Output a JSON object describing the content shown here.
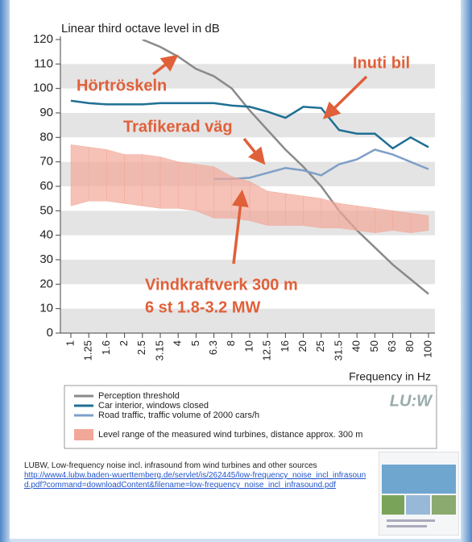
{
  "chart_data": {
    "type": "line",
    "title": "Linear third octave level in dB",
    "x_label": "Frequency in Hz",
    "categories": [
      "1",
      "1.25",
      "1.6",
      "2",
      "2.5",
      "3.15",
      "4",
      "5",
      "6.3",
      "8",
      "10",
      "12.5",
      "16",
      "20",
      "25",
      "31.5",
      "40",
      "50",
      "63",
      "80",
      "100"
    ],
    "ylim": [
      0,
      120
    ],
    "yticks": [
      0,
      10,
      20,
      30,
      40,
      50,
      60,
      70,
      80,
      90,
      100,
      110,
      120
    ],
    "grid": "bands",
    "series": [
      {
        "name": "Perception threshold",
        "color": "#8a8a8a",
        "values": [
          null,
          null,
          null,
          null,
          120,
          117,
          113,
          108,
          105,
          100,
          91,
          83,
          75,
          68,
          60,
          50,
          42,
          35,
          28,
          22,
          16
        ]
      },
      {
        "name": "Car interior, windows closed",
        "color": "#1f6f94",
        "values": [
          95,
          94,
          93.5,
          93.5,
          93.5,
          94,
          94,
          94,
          94,
          93,
          92.5,
          90.5,
          88,
          92.5,
          92,
          83,
          81.5,
          81.5,
          75.5,
          80,
          76
        ]
      },
      {
        "name": "Road traffic, traffic volume of 2000 cars/h",
        "color": "#7f9fc8",
        "values": [
          null,
          null,
          null,
          null,
          null,
          null,
          null,
          null,
          63,
          63,
          63.5,
          65.5,
          67.5,
          66.5,
          64.5,
          69,
          71,
          75,
          73,
          70,
          67
        ]
      },
      {
        "name": "Level range of the measured wind turbines, distance approx. 300 m",
        "color": "#f2a898",
        "type": "range",
        "values": [
          77,
          76,
          75,
          73,
          73,
          72,
          70,
          69,
          68,
          64,
          62,
          58,
          57,
          56,
          55,
          53,
          52,
          51,
          50,
          49,
          48
        ],
        "lower_values": [
          52,
          54,
          54,
          53,
          52,
          51,
          51,
          50,
          47,
          47,
          46,
          44,
          44,
          44,
          43,
          43,
          42,
          41,
          42,
          41,
          42
        ]
      }
    ],
    "annotations": [
      {
        "text": "Hörtröskeln"
      },
      {
        "text": "Inuti bil"
      },
      {
        "text": "Trafikerad väg"
      },
      {
        "text": "Vindkraftverk 300 m"
      },
      {
        "text": "6 st 1.8-3.2 MW"
      }
    ],
    "annotation_color": "#e0603a",
    "logo": "LU:W"
  },
  "citation": {
    "text": "LUBW, Low-frequency noise incl. infrasound from wind turbines and other sources",
    "url": "http://www4.lubw.baden-wuerttemberg.de/servlet/is/262445/low-frequency_noise_incl_infrasound.pdf?command=downloadContent&filename=low-frequency_noise_incl_infrasound.pdf"
  }
}
